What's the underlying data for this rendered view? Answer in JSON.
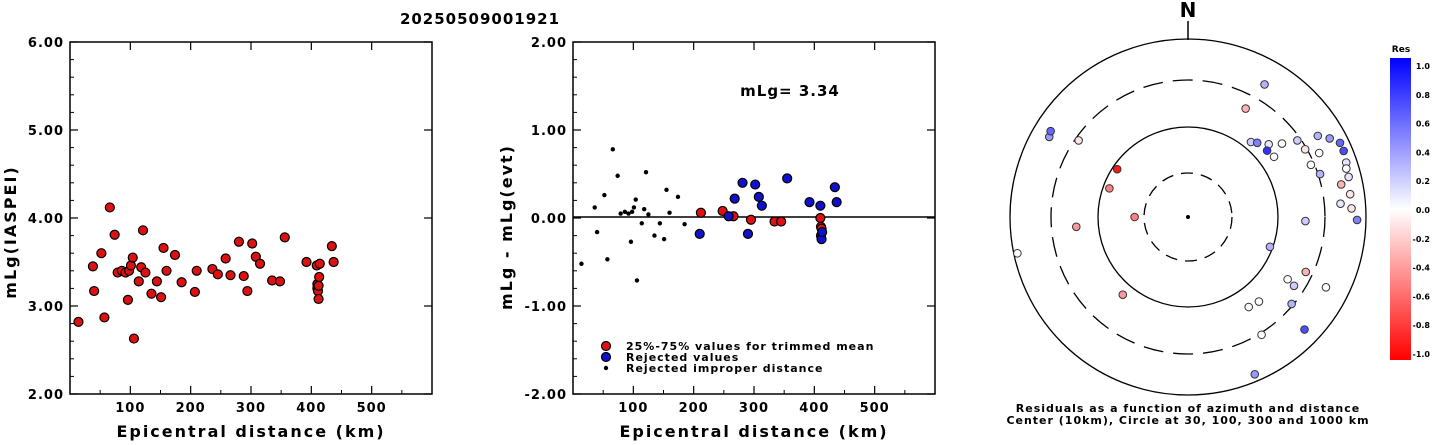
{
  "title": "20250509001921",
  "chart_data": [
    {
      "type": "scatter",
      "xlabel": "Epicentral distance (km)",
      "ylabel": "mLg(IASPEI)",
      "xlim": [
        0,
        600
      ],
      "ylim": [
        2.0,
        6.0
      ],
      "xticks": [
        "100",
        "200",
        "300",
        "400",
        "500"
      ],
      "yticks": [
        "2.00",
        "3.00",
        "4.00",
        "5.00",
        "6.00"
      ],
      "points": [
        [
          14,
          2.82
        ],
        [
          38,
          3.45
        ],
        [
          40,
          3.17
        ],
        [
          52,
          3.6
        ],
        [
          57,
          2.87
        ],
        [
          66,
          4.12
        ],
        [
          74,
          3.81
        ],
        [
          79,
          3.38
        ],
        [
          86,
          3.4
        ],
        [
          92,
          3.38
        ],
        [
          96,
          3.07
        ],
        [
          98,
          3.4
        ],
        [
          101,
          3.46
        ],
        [
          104,
          3.55
        ],
        [
          106,
          2.63
        ],
        [
          114,
          3.28
        ],
        [
          118,
          3.44
        ],
        [
          121,
          3.86
        ],
        [
          125,
          3.38
        ],
        [
          135,
          3.14
        ],
        [
          144,
          3.28
        ],
        [
          151,
          3.1
        ],
        [
          155,
          3.66
        ],
        [
          160,
          3.4
        ],
        [
          174,
          3.58
        ],
        [
          185,
          3.27
        ],
        [
          207,
          3.16
        ],
        [
          210,
          3.4
        ],
        [
          236,
          3.42
        ],
        [
          245,
          3.36
        ],
        [
          258,
          3.54
        ],
        [
          266,
          3.35
        ],
        [
          280,
          3.73
        ],
        [
          288,
          3.34
        ],
        [
          294,
          3.17
        ],
        [
          302,
          3.71
        ],
        [
          308,
          3.56
        ],
        [
          315,
          3.48
        ],
        [
          335,
          3.29
        ],
        [
          348,
          3.28
        ],
        [
          356,
          3.78
        ],
        [
          392,
          3.5
        ],
        [
          409,
          3.46
        ],
        [
          410,
          3.25
        ],
        [
          410,
          3.2
        ],
        [
          411,
          3.17
        ],
        [
          412,
          3.08
        ],
        [
          412,
          3.23
        ],
        [
          413,
          3.33
        ],
        [
          414,
          3.48
        ],
        [
          434,
          3.68
        ],
        [
          437,
          3.5
        ]
      ]
    },
    {
      "type": "scatter",
      "xlabel": "Epicentral distance (km)",
      "ylabel": "mLg - mLg(evt)",
      "xlim": [
        0,
        600
      ],
      "ylim": [
        -2.0,
        2.0
      ],
      "xticks": [
        "100",
        "200",
        "300",
        "400",
        "500"
      ],
      "yticks": [
        "-2.00",
        "-1.00",
        "0.00",
        "1.00",
        "2.00"
      ],
      "annotation": "mLg= 3.34",
      "legend": [
        {
          "label": "25%-75% values for trimmed mean",
          "color": "#dd1111"
        },
        {
          "label": "Rejected values",
          "color": "#1111cc"
        },
        {
          "label": "Rejected improper distance",
          "color": "#000000"
        }
      ],
      "series": [
        {
          "name": "25%-75% values for trimmed mean",
          "color": "#dd1111",
          "size": "large",
          "points": [
            [
              212,
              0.06
            ],
            [
              248,
              0.08
            ],
            [
              266,
              0.02
            ],
            [
              295,
              -0.02
            ],
            [
              334,
              -0.04
            ],
            [
              345,
              -0.04
            ],
            [
              410,
              0.0
            ],
            [
              411,
              -0.1
            ],
            [
              412,
              -0.12
            ]
          ]
        },
        {
          "name": "Rejected values",
          "color": "#1111cc",
          "size": "large",
          "points": [
            [
              210,
              -0.18
            ],
            [
              258,
              0.02
            ],
            [
              268,
              0.22
            ],
            [
              281,
              0.4
            ],
            [
              290,
              -0.18
            ],
            [
              302,
              0.38
            ],
            [
              308,
              0.24
            ],
            [
              313,
              0.14
            ],
            [
              355,
              0.45
            ],
            [
              392,
              0.18
            ],
            [
              410,
              0.14
            ],
            [
              411,
              -0.2
            ],
            [
              412,
              -0.24
            ],
            [
              413,
              -0.16
            ],
            [
              434,
              0.35
            ],
            [
              437,
              0.18
            ]
          ]
        },
        {
          "name": "Rejected improper distance",
          "color": "#000000",
          "size": "small",
          "points": [
            [
              14,
              -0.52
            ],
            [
              36,
              0.12
            ],
            [
              40,
              -0.16
            ],
            [
              52,
              0.26
            ],
            [
              57,
              -0.47
            ],
            [
              66,
              0.78
            ],
            [
              74,
              0.48
            ],
            [
              79,
              0.05
            ],
            [
              86,
              0.07
            ],
            [
              92,
              0.05
            ],
            [
              96,
              -0.27
            ],
            [
              98,
              0.07
            ],
            [
              101,
              0.12
            ],
            [
              104,
              0.21
            ],
            [
              106,
              -0.71
            ],
            [
              114,
              -0.06
            ],
            [
              118,
              0.1
            ],
            [
              121,
              0.52
            ],
            [
              125,
              0.04
            ],
            [
              135,
              -0.2
            ],
            [
              144,
              -0.06
            ],
            [
              151,
              -0.24
            ],
            [
              155,
              0.32
            ],
            [
              160,
              0.06
            ],
            [
              174,
              0.24
            ],
            [
              185,
              -0.07
            ]
          ]
        }
      ]
    },
    {
      "type": "polar-scatter",
      "north_label": "N",
      "caption": [
        "Residuals as a function of azimuth and distance",
        "Center (10km), Circle at 30, 100, 300 and 1000 km"
      ],
      "rings_km": [
        30,
        100,
        300,
        1000
      ],
      "colorbar": {
        "title": "Res",
        "ticks": [
          "1.0",
          "0.8",
          "0.6",
          "0.4",
          "0.2",
          "0.0",
          "-0.2",
          "-0.4",
          "-0.6",
          "-0.8",
          "-1.0"
        ]
      },
      "stations": [
        {
          "az": 270,
          "r": 0.3,
          "res": -0.5
        },
        {
          "az": 300,
          "r": 0.9,
          "res": 0.4
        },
        {
          "az": 302,
          "r": 0.91,
          "res": 0.6
        },
        {
          "az": 305,
          "r": 0.75,
          "res": -0.1
        },
        {
          "az": 304,
          "r": 0.48,
          "res": -0.9
        },
        {
          "az": 290,
          "r": 0.47,
          "res": -0.5
        },
        {
          "az": 265,
          "r": 0.63,
          "res": -0.4
        },
        {
          "az": 258,
          "r": 0.98,
          "res": 0.0
        },
        {
          "az": 28,
          "r": 0.69,
          "res": -0.3
        },
        {
          "az": 30,
          "r": 0.86,
          "res": 0.3
        },
        {
          "az": 40,
          "r": 0.55,
          "res": 0.2
        },
        {
          "az": 43,
          "r": 0.57,
          "res": 0.5
        },
        {
          "az": 48,
          "r": 0.61,
          "res": 0.1
        },
        {
          "az": 50,
          "r": 0.58,
          "res": 0.8
        },
        {
          "az": 55,
          "r": 0.59,
          "res": 0.0
        },
        {
          "az": 52,
          "r": 0.67,
          "res": 0.0
        },
        {
          "az": 55,
          "r": 0.75,
          "res": 0.2
        },
        {
          "az": 60,
          "r": 0.76,
          "res": -0.1
        },
        {
          "az": 64,
          "r": 0.82,
          "res": 0.0
        },
        {
          "az": 67,
          "r": 0.75,
          "res": 0.0
        },
        {
          "az": 72,
          "r": 0.78,
          "res": 0.3
        },
        {
          "az": 58,
          "r": 0.86,
          "res": 0.3
        },
        {
          "az": 61,
          "r": 0.91,
          "res": 0.4
        },
        {
          "az": 64,
          "r": 0.95,
          "res": 0.6
        },
        {
          "az": 67,
          "r": 0.95,
          "res": 0.7
        },
        {
          "az": 71,
          "r": 0.94,
          "res": 0.1
        },
        {
          "az": 73,
          "r": 0.93,
          "res": 0.0
        },
        {
          "az": 76,
          "r": 0.93,
          "res": 0.1
        },
        {
          "az": 78,
          "r": 0.88,
          "res": -0.3
        },
        {
          "az": 82,
          "r": 0.92,
          "res": -0.1
        },
        {
          "az": 85,
          "r": 0.86,
          "res": 0.1
        },
        {
          "az": 87,
          "r": 0.92,
          "res": -0.1
        },
        {
          "az": 91,
          "r": 0.95,
          "res": 0.5
        },
        {
          "az": 92,
          "r": 0.66,
          "res": 0.2
        },
        {
          "az": 110,
          "r": 0.49,
          "res": 0.3
        },
        {
          "az": 115,
          "r": 0.73,
          "res": -0.3
        },
        {
          "az": 117,
          "r": 0.87,
          "res": 0.0
        },
        {
          "az": 122,
          "r": 0.66,
          "res": 0.0
        },
        {
          "az": 123,
          "r": 0.71,
          "res": 0.2
        },
        {
          "az": 130,
          "r": 0.76,
          "res": 0.3
        },
        {
          "az": 134,
          "r": 0.91,
          "res": 0.7
        },
        {
          "az": 140,
          "r": 0.62,
          "res": 0.0
        },
        {
          "az": 146,
          "r": 0.61,
          "res": 0.0
        },
        {
          "az": 148,
          "r": 0.78,
          "res": 0.0
        },
        {
          "az": 157,
          "r": 0.96,
          "res": 0.4
        },
        {
          "az": 220,
          "r": 0.57,
          "res": -0.4
        }
      ]
    }
  ]
}
